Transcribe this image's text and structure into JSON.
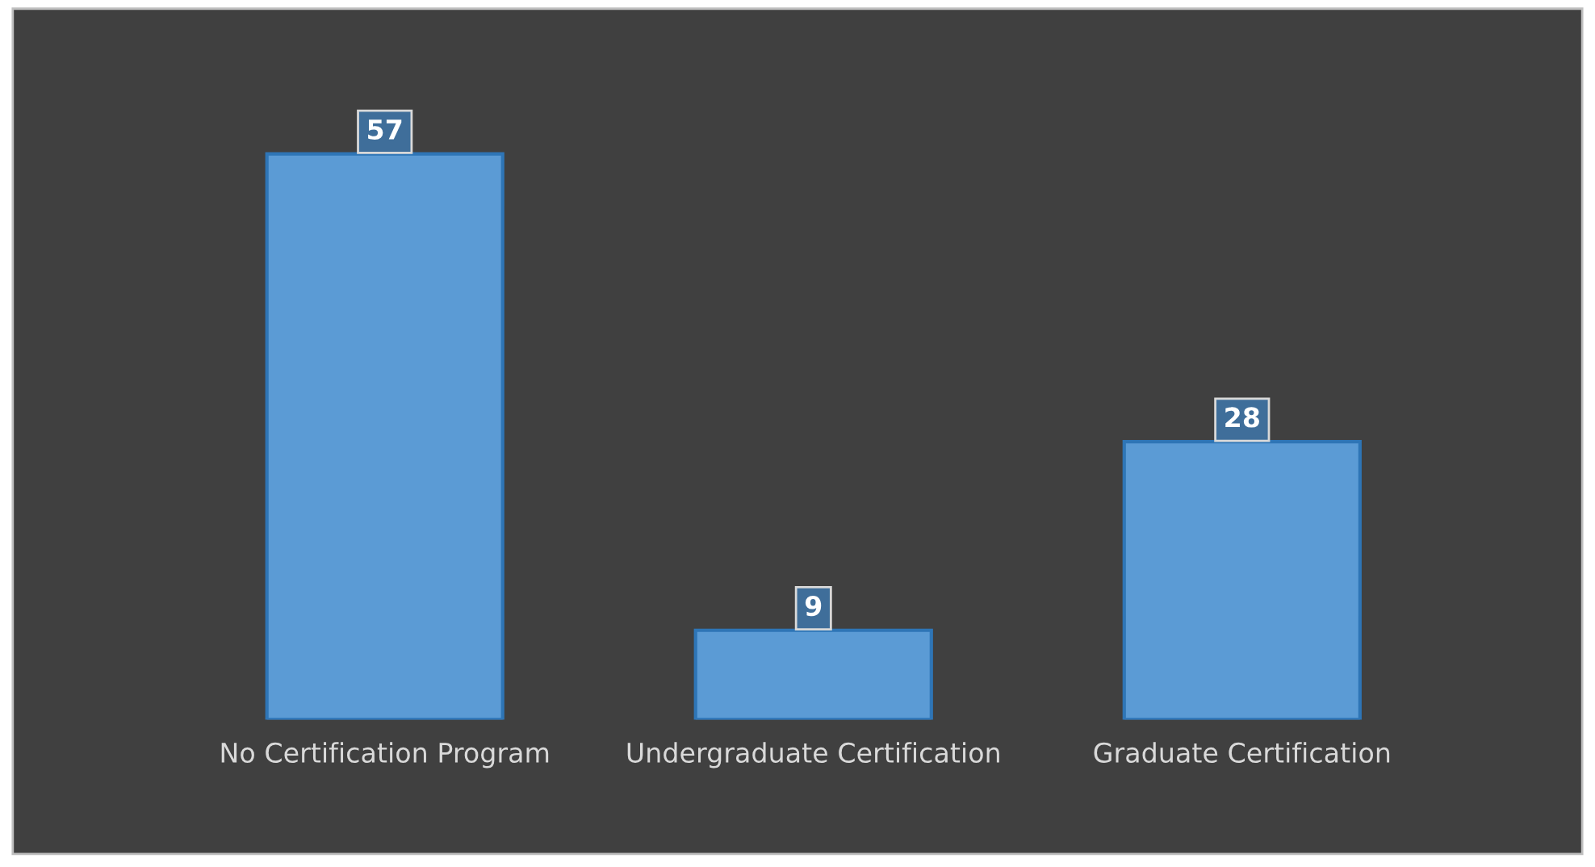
{
  "chart_data": {
    "type": "bar",
    "categories": [
      "No Certification Program",
      "Undergraduate Certification",
      "Graduate Certification"
    ],
    "values": [
      57,
      9,
      28
    ],
    "color": "#5b9bd5",
    "data_labels": true,
    "grid": false,
    "legend": false
  }
}
